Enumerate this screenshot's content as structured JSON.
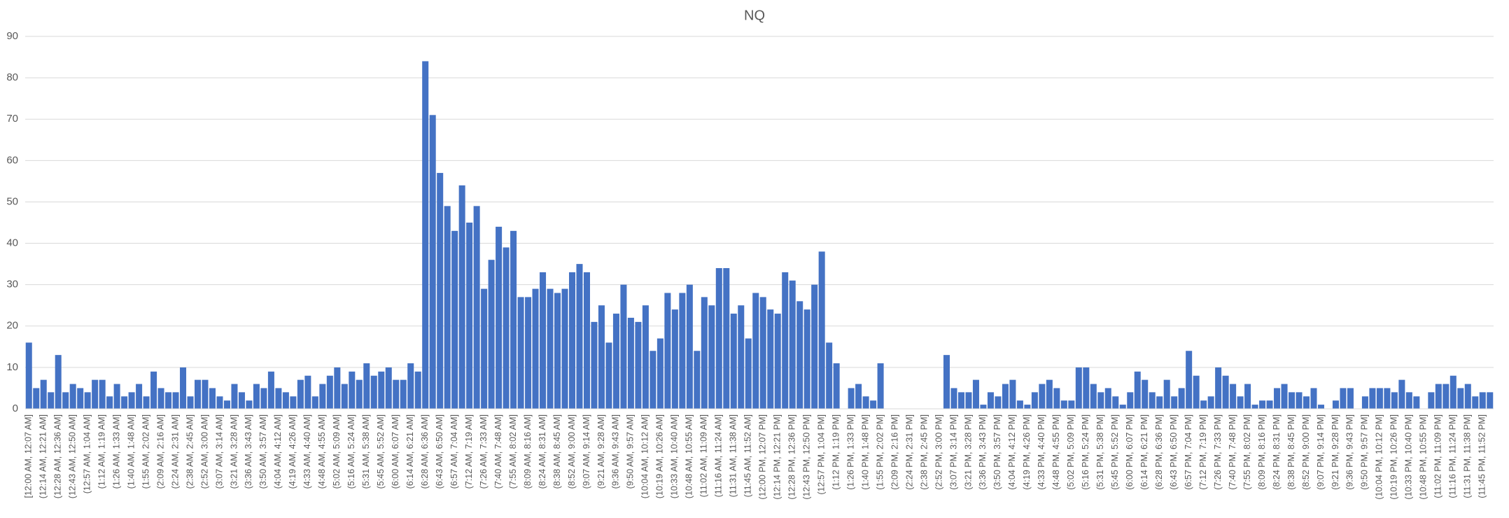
{
  "chart_data": {
    "type": "bar",
    "title": "NQ",
    "color": "#4472c4",
    "grid": true,
    "ylim": [
      0,
      90
    ],
    "yticks": [
      0,
      10,
      20,
      30,
      40,
      50,
      60,
      70,
      80,
      90
    ],
    "categories": [
      "[12:00 AM, 12:07 AM]",
      null,
      "(12:14 AM, 12:21 AM]",
      null,
      "(12:28 AM, 12:36 AM]",
      null,
      "(12:43 AM, 12:50 AM]",
      null,
      "(12:57 AM, 1:04 AM]",
      null,
      "(1:12 AM, 1:19 AM]",
      null,
      "(1:26 AM, 1:33 AM]",
      null,
      "(1:40 AM, 1:48 AM]",
      null,
      "(1:55 AM, 2:02 AM]",
      null,
      "(2:09 AM, 2:16 AM]",
      null,
      "(2:24 AM, 2:31 AM]",
      null,
      "(2:38 AM, 2:45 AM]",
      null,
      "(2:52 AM, 3:00 AM]",
      null,
      "(3:07 AM, 3:14 AM]",
      null,
      "(3:21 AM, 3:28 AM]",
      null,
      "(3:36 AM, 3:43 AM]",
      null,
      "(3:50 AM, 3:57 AM]",
      null,
      "(4:04 AM, 4:12 AM]",
      null,
      "(4:19 AM, 4:26 AM]",
      null,
      "(4:33 AM, 4:40 AM]",
      null,
      "(4:48 AM, 4:55 AM]",
      null,
      "(5:02 AM, 5:09 AM]",
      null,
      "(5:16 AM, 5:24 AM]",
      null,
      "(5:31 AM, 5:38 AM]",
      null,
      "(5:45 AM, 5:52 AM]",
      null,
      "(6:00 AM, 6:07 AM]",
      null,
      "(6:14 AM, 6:21 AM]",
      null,
      "(6:28 AM, 6:36 AM]",
      null,
      "(6:43 AM, 6:50 AM]",
      null,
      "(6:57 AM, 7:04 AM]",
      null,
      "(7:12 AM, 7:19 AM]",
      null,
      "(7:26 AM, 7:33 AM]",
      null,
      "(7:40 AM, 7:48 AM]",
      null,
      "(7:55 AM, 8:02 AM]",
      null,
      "(8:09 AM, 8:16 AM]",
      null,
      "(8:24 AM, 8:31 AM]",
      null,
      "(8:38 AM, 8:45 AM]",
      null,
      "(8:52 AM, 9:00 AM]",
      null,
      "(9:07 AM, 9:14 AM]",
      null,
      "(9:21 AM, 9:28 AM]",
      null,
      "(9:36 AM, 9:43 AM]",
      null,
      "(9:50 AM, 9:57 AM]",
      null,
      "(10:04 AM, 10:12 AM]",
      null,
      "(10:19 AM, 10:26 AM]",
      null,
      "(10:33 AM, 10:40 AM]",
      null,
      "(10:48 AM, 10:55 AM]",
      null,
      "(11:02 AM, 11:09 AM]",
      null,
      "(11:16 AM, 11:24 AM]",
      null,
      "(11:31 AM, 11:38 AM]",
      null,
      "(11:45 AM, 11:52 AM]",
      null,
      "(12:00 PM, 12:07 PM]",
      null,
      "(12:14 PM, 12:21 PM]",
      null,
      "(12:28 PM, 12:36 PM]",
      null,
      "(12:43 PM, 12:50 PM]",
      null,
      "(12:57 PM, 1:04 PM]",
      null,
      "(1:12 PM, 1:19 PM]",
      null,
      "(1:26 PM, 1:33 PM]",
      null,
      "(1:40 PM, 1:48 PM]",
      null,
      "(1:55 PM, 2:02 PM]",
      null,
      "(2:09 PM, 2:16 PM]",
      null,
      "(2:24 PM, 2:31 PM]",
      null,
      "(2:38 PM, 2:45 PM]",
      null,
      "(2:52 PM, 3:00 PM]",
      null,
      "(3:07 PM, 3:14 PM]",
      null,
      "(3:21 PM, 3:28 PM]",
      null,
      "(3:36 PM, 3:43 PM]",
      null,
      "(3:50 PM, 3:57 PM]",
      null,
      "(4:04 PM, 4:12 PM]",
      null,
      "(4:19 PM, 4:26 PM]",
      null,
      "(4:33 PM, 4:40 PM]",
      null,
      "(4:48 PM, 4:55 PM]",
      null,
      "(5:02 PM, 5:09 PM]",
      null,
      "(5:16 PM, 5:24 PM]",
      null,
      "(5:31 PM, 5:38 PM]",
      null,
      "(5:45 PM, 5:52 PM]",
      null,
      "(6:00 PM, 6:07 PM]",
      null,
      "(6:14 PM, 6:21 PM]",
      null,
      "(6:28 PM, 6:36 PM]",
      null,
      "(6:43 PM, 6:50 PM]",
      null,
      "(6:57 PM, 7:04 PM]",
      null,
      "(7:12 PM, 7:19 PM]",
      null,
      "(7:26 PM, 7:33 PM]",
      null,
      "(7:40 PM, 7:48 PM]",
      null,
      "(7:55 PM, 8:02 PM]",
      null,
      "(8:09 PM, 8:16 PM]",
      null,
      "(8:24 PM, 8:31 PM]",
      null,
      "(8:38 PM, 8:45 PM]",
      null,
      "(8:52 PM, 9:00 PM]",
      null,
      "(9:07 PM, 9:14 PM]",
      null,
      "(9:21 PM, 9:28 PM]",
      null,
      "(9:36 PM, 9:43 PM]",
      null,
      "(9:50 PM, 9:57 PM]",
      null,
      "(10:04 PM, 10:12 PM]",
      null,
      "(10:19 PM, 10:26 PM]",
      null,
      "(10:33 PM, 10:40 PM]",
      null,
      "(10:48 PM, 10:55 PM]",
      null,
      "(11:02 PM, 11:09 PM]",
      null,
      "(11:16 PM, 11:24 PM]",
      null,
      "(11:31 PM, 11:38 PM]",
      null,
      "(11:45 PM, 11:52 PM]",
      null
    ],
    "values": [
      16,
      5,
      7,
      4,
      13,
      4,
      6,
      5,
      4,
      7,
      7,
      3,
      6,
      3,
      4,
      6,
      3,
      9,
      5,
      4,
      4,
      10,
      3,
      7,
      7,
      5,
      3,
      2,
      6,
      4,
      2,
      6,
      5,
      9,
      5,
      4,
      3,
      7,
      8,
      3,
      6,
      8,
      10,
      6,
      9,
      7,
      11,
      8,
      9,
      10,
      7,
      7,
      11,
      9,
      84,
      71,
      57,
      49,
      43,
      54,
      45,
      49,
      29,
      36,
      44,
      39,
      43,
      27,
      27,
      29,
      33,
      29,
      28,
      29,
      33,
      35,
      33,
      21,
      25,
      16,
      23,
      30,
      22,
      21,
      25,
      14,
      17,
      28,
      24,
      28,
      30,
      14,
      27,
      25,
      34,
      34,
      23,
      25,
      17,
      28,
      27,
      24,
      23,
      33,
      31,
      26,
      24,
      30,
      38,
      16,
      11,
      0,
      5,
      6,
      3,
      2,
      11,
      0,
      0,
      0,
      0,
      0,
      0,
      0,
      0,
      13,
      5,
      4,
      4,
      7,
      1,
      4,
      3,
      6,
      7,
      2,
      1,
      4,
      6,
      7,
      5,
      2,
      2,
      10,
      10,
      6,
      4,
      5,
      3,
      1,
      4,
      9,
      7,
      4,
      3,
      7,
      3,
      5,
      14,
      8,
      2,
      3,
      10,
      8,
      6,
      3,
      6,
      1,
      2,
      2,
      5,
      6,
      4,
      4,
      3,
      5,
      1,
      0,
      2,
      5,
      5,
      0,
      3,
      5,
      5,
      5,
      4,
      7,
      4,
      3,
      0,
      4,
      6,
      6,
      8,
      5,
      6,
      3,
      4,
      4
    ]
  }
}
